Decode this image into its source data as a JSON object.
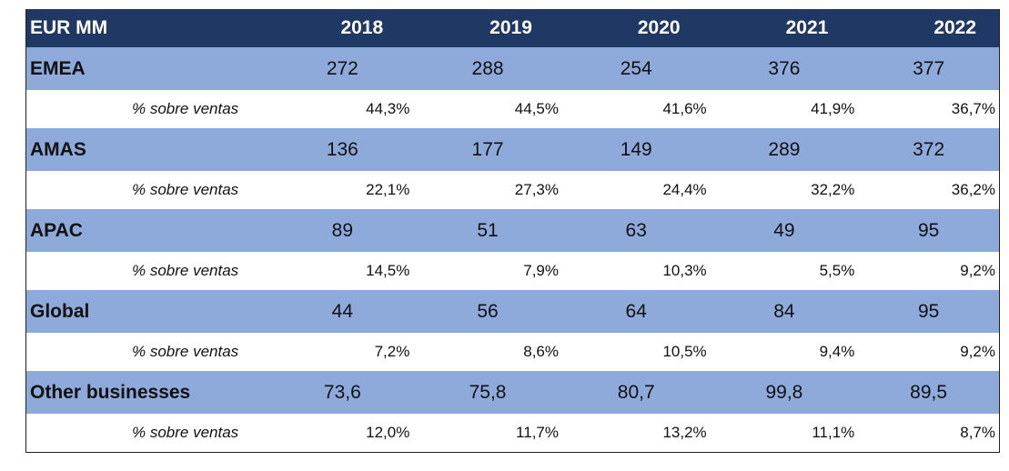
{
  "header": {
    "label": "EUR MM",
    "years": [
      "2018",
      "2019",
      "2020",
      "2021",
      "2022"
    ]
  },
  "rows": [
    {
      "name": "EMEA",
      "values": [
        "272",
        "288",
        "254",
        "376",
        "377"
      ],
      "pct_label": "% sobre ventas",
      "pct": [
        "44,3%",
        "44,5%",
        "41,6%",
        "41,9%",
        "36,7%"
      ]
    },
    {
      "name": "AMAS",
      "values": [
        "136",
        "177",
        "149",
        "289",
        "372"
      ],
      "pct_label": "% sobre ventas",
      "pct": [
        "22,1%",
        "27,3%",
        "24,4%",
        "32,2%",
        "36,2%"
      ]
    },
    {
      "name": "APAC",
      "values": [
        "89",
        "51",
        "63",
        "49",
        "95"
      ],
      "pct_label": "% sobre ventas",
      "pct": [
        "14,5%",
        "7,9%",
        "10,3%",
        "5,5%",
        "9,2%"
      ]
    },
    {
      "name": "Global",
      "values": [
        "44",
        "56",
        "64",
        "84",
        "95"
      ],
      "pct_label": "% sobre ventas",
      "pct": [
        "7,2%",
        "8,6%",
        "10,5%",
        "9,4%",
        "9,2%"
      ]
    },
    {
      "name": "Other businesses",
      "values": [
        "73,6",
        "75,8",
        "80,7",
        "99,8",
        "89,5"
      ],
      "pct_label": "% sobre ventas",
      "pct": [
        "12,0%",
        "11,7%",
        "13,2%",
        "11,1%",
        "8,7%"
      ]
    }
  ],
  "colors": {
    "header_bg": "#1f3864",
    "segment_row_bg": "#8eaadb",
    "pct_row_bg": "#ffffff",
    "header_text": "#ffffff"
  }
}
